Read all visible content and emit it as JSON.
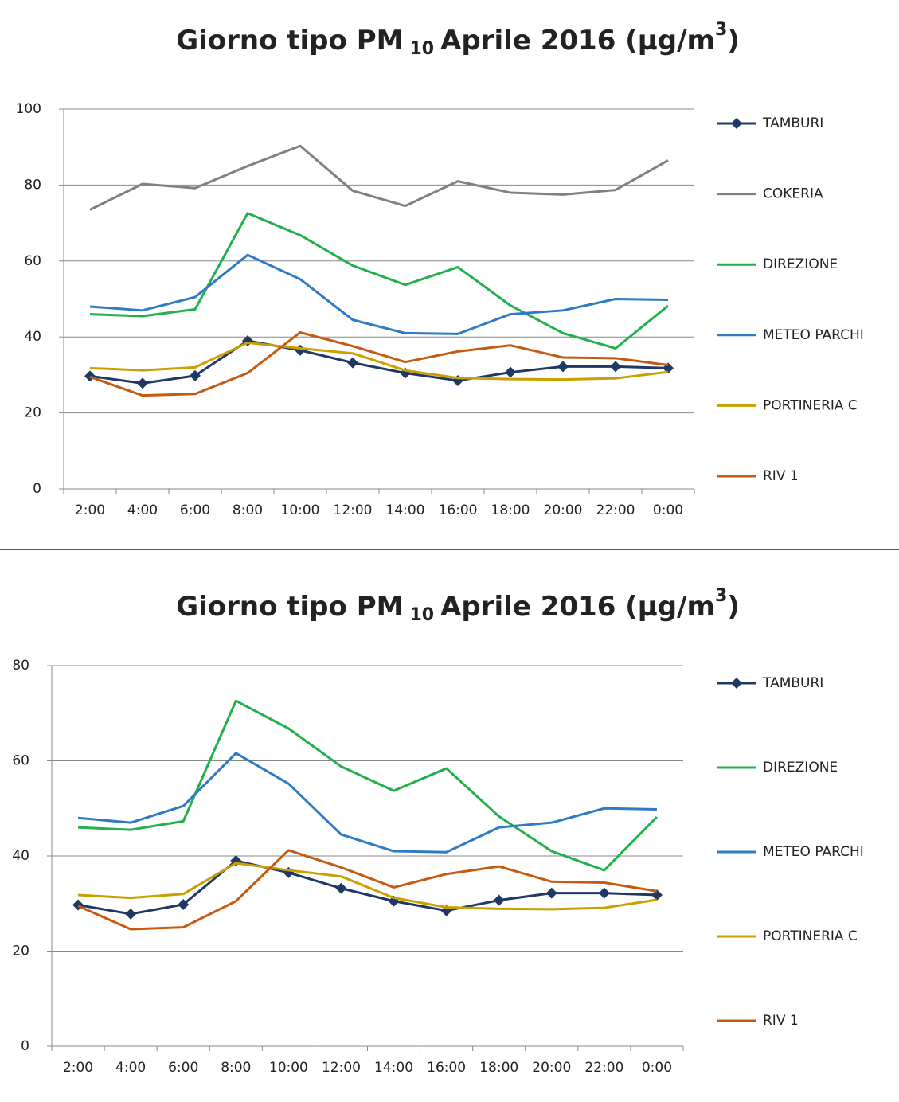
{
  "chart_data": [
    {
      "type": "line",
      "title": [
        "Giorno tipo PM",
        "10",
        "Aprile 2016 (µg/m",
        "3",
        ")"
      ],
      "categories": [
        "2:00",
        "4:00",
        "6:00",
        "8:00",
        "10:00",
        "12:00",
        "14:00",
        "16:00",
        "18:00",
        "20:00",
        "22:00",
        "0:00"
      ],
      "ylim": [
        0,
        100
      ],
      "yticks": [
        0,
        20,
        40,
        60,
        80,
        100
      ],
      "grid": true,
      "legend": "right",
      "series": [
        {
          "name": "TAMBURI",
          "color": "#1f3864",
          "marker": "diamond",
          "values": [
            29.7,
            27.8,
            29.8,
            39,
            36.5,
            33.2,
            30.5,
            28.5,
            30.7,
            32.2,
            32.2,
            31.8
          ]
        },
        {
          "name": "COKERIA",
          "color": "#808080",
          "values": [
            73.5,
            80.3,
            79.2,
            85,
            90.3,
            78.5,
            74.5,
            81,
            78,
            77.5,
            78.7,
            86.5
          ]
        },
        {
          "name": "DIREZIONE",
          "color": "#22b04c",
          "values": [
            46,
            45.5,
            47.3,
            72.6,
            66.8,
            58.8,
            53.7,
            58.4,
            48.3,
            41,
            37,
            48.2
          ]
        },
        {
          "name": "METEO PARCHI",
          "color": "#2e7bc4",
          "values": [
            48,
            47,
            50.5,
            61.6,
            55.2,
            44.5,
            41,
            40.8,
            46,
            47,
            50,
            49.8
          ]
        },
        {
          "name": "PORTINERIA C",
          "color": "#c9a000",
          "values": [
            31.8,
            31.2,
            32,
            38.5,
            37,
            35.7,
            31.2,
            29.2,
            28.9,
            28.8,
            29.1,
            30.8
          ]
        },
        {
          "name": "RIV 1",
          "color": "#c55a11",
          "values": [
            29.5,
            24.6,
            25,
            30.5,
            41.2,
            37.6,
            33.4,
            36.2,
            37.8,
            34.6,
            34.4,
            32.6
          ]
        }
      ]
    },
    {
      "type": "line",
      "title": [
        "Giorno tipo PM",
        "10",
        "Aprile 2016 (µg/m",
        "3",
        ")"
      ],
      "categories": [
        "2:00",
        "4:00",
        "6:00",
        "8:00",
        "10:00",
        "12:00",
        "14:00",
        "16:00",
        "18:00",
        "20:00",
        "22:00",
        "0:00"
      ],
      "ylim": [
        0,
        80
      ],
      "yticks": [
        0,
        20,
        40,
        60,
        80
      ],
      "grid": true,
      "legend": "right",
      "series": [
        {
          "name": "TAMBURI",
          "color": "#1f3864",
          "marker": "diamond",
          "values": [
            29.7,
            27.8,
            29.8,
            39,
            36.5,
            33.2,
            30.5,
            28.5,
            30.7,
            32.2,
            32.2,
            31.8
          ]
        },
        {
          "name": "DIREZIONE",
          "color": "#22b04c",
          "values": [
            46,
            45.5,
            47.3,
            72.6,
            66.8,
            58.8,
            53.7,
            58.4,
            48.3,
            41,
            37,
            48.2
          ]
        },
        {
          "name": "METEO PARCHI",
          "color": "#2e7bc4",
          "values": [
            48,
            47,
            50.5,
            61.6,
            55.2,
            44.5,
            41,
            40.8,
            46,
            47,
            50,
            49.8
          ]
        },
        {
          "name": "PORTINERIA C",
          "color": "#c9a000",
          "values": [
            31.8,
            31.2,
            32,
            38.5,
            37,
            35.7,
            31.2,
            29.2,
            28.9,
            28.8,
            29.1,
            30.8
          ]
        },
        {
          "name": "RIV 1",
          "color": "#c55a11",
          "values": [
            29.5,
            24.6,
            25,
            30.5,
            41.2,
            37.6,
            33.4,
            36.2,
            37.8,
            34.6,
            34.4,
            32.6
          ]
        }
      ]
    }
  ]
}
